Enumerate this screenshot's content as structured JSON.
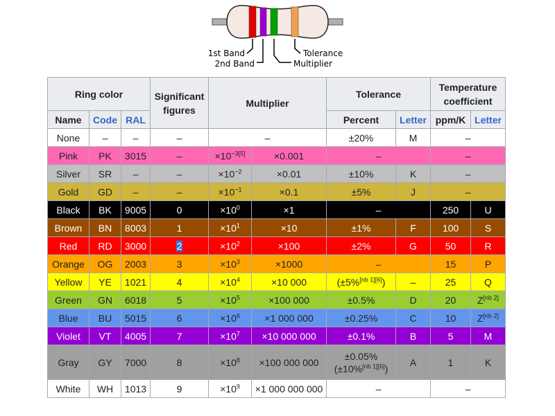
{
  "diagram": {
    "labels": {
      "band1": "1st Band",
      "band2": "2nd Band",
      "multiplier": "Multiplier",
      "tolerance": "Tolerance"
    },
    "band_colors": [
      "#e00000",
      "#9b00d3",
      "#00a000",
      "#f0a050"
    ],
    "body_color": "#f6e9e4"
  },
  "headers": {
    "ring_color": "Ring color",
    "significant_figures": "Significant figures",
    "multiplier": "Multiplier",
    "tolerance": "Tolerance",
    "temperature_coefficient": "Temperature coefficient",
    "name": "Name",
    "code": "Code",
    "ral": "RAL",
    "percent": "Percent",
    "letter": "Letter",
    "ppm_k": "ppm/K",
    "temp_letter": "Letter"
  },
  "rows": [
    {
      "name": "None",
      "code": "–",
      "ral": "–",
      "sig": "–",
      "mult_exp": "–",
      "mult_val": "–",
      "tol_pct": "±20%",
      "tol_letter": "M",
      "ppm": "–",
      "temp_letter": "",
      "bg": "#ffffff",
      "fg": "#202122"
    },
    {
      "name": "Pink",
      "code": "PK",
      "ral": "3015",
      "sig": "–",
      "mult_exp": "×10",
      "mult_sup": "−3",
      "mult_ref": "[5]",
      "mult_val": "×0.001",
      "tol_pct": "–",
      "tol_letter": "",
      "ppm": "–",
      "temp_letter": "",
      "bg": "#ff69b4",
      "fg": "#202122"
    },
    {
      "name": "Silver",
      "code": "SR",
      "ral": "–",
      "sig": "–",
      "mult_exp": "×10",
      "mult_sup": "−2",
      "mult_val": "×0.01",
      "tol_pct": "±10%",
      "tol_letter": "K",
      "ppm": "–",
      "temp_letter": "",
      "bg": "#c0c0c0",
      "fg": "#202122"
    },
    {
      "name": "Gold",
      "code": "GD",
      "ral": "–",
      "sig": "–",
      "mult_exp": "×10",
      "mult_sup": "−1",
      "mult_val": "×0.1",
      "tol_pct": "±5%",
      "tol_letter": "J",
      "ppm": "–",
      "temp_letter": "",
      "bg": "#cfb53b",
      "fg": "#202122"
    },
    {
      "name": "Black",
      "code": "BK",
      "ral": "9005",
      "sig": "0",
      "mult_exp": "×10",
      "mult_sup": "0",
      "mult_val": "×1",
      "tol_pct": "–",
      "tol_letter": "",
      "ppm": "250",
      "temp_letter": "U",
      "bg": "#000000",
      "fg": "#ffffff"
    },
    {
      "name": "Brown",
      "code": "BN",
      "ral": "8003",
      "sig": "1",
      "mult_exp": "×10",
      "mult_sup": "1",
      "mult_val": "×10",
      "tol_pct": "±1%",
      "tol_letter": "F",
      "ppm": "100",
      "temp_letter": "S",
      "bg": "#964b00",
      "fg": "#ffffff"
    },
    {
      "name": "Red",
      "code": "RD",
      "ral": "3000",
      "sig": "2",
      "mult_exp": "×10",
      "mult_sup": "2",
      "mult_val": "×100",
      "tol_pct": "±2%",
      "tol_letter": "G",
      "ppm": "50",
      "temp_letter": "R",
      "bg": "#ff0000",
      "fg": "#ffffff",
      "sig_selected": true
    },
    {
      "name": "Orange",
      "code": "OG",
      "ral": "2003",
      "sig": "3",
      "mult_exp": "×10",
      "mult_sup": "3",
      "mult_val": "×1000",
      "tol_pct": "–",
      "tol_letter": "",
      "ppm": "15",
      "temp_letter": "P",
      "bg": "#ffa500",
      "fg": "#202122"
    },
    {
      "name": "Yellow",
      "code": "YE",
      "ral": "1021",
      "sig": "4",
      "mult_exp": "×10",
      "mult_sup": "4",
      "mult_val": "×10 000",
      "tol_pct": "(±5%",
      "tol_ref": "[nb 1][6]",
      "tol_pct_end": ")",
      "tol_letter": "–",
      "ppm": "25",
      "temp_letter": "Q",
      "bg": "#ffff00",
      "fg": "#202122"
    },
    {
      "name": "Green",
      "code": "GN",
      "ral": "6018",
      "sig": "5",
      "mult_exp": "×10",
      "mult_sup": "5",
      "mult_val": "×100 000",
      "tol_pct": "±0.5%",
      "tol_letter": "D",
      "ppm": "20",
      "temp_letter": "Z",
      "temp_ref": "[nb 2]",
      "bg": "#9acd32",
      "fg": "#202122"
    },
    {
      "name": "Blue",
      "code": "BU",
      "ral": "5015",
      "sig": "6",
      "mult_exp": "×10",
      "mult_sup": "6",
      "mult_val": "×1 000 000",
      "tol_pct": "±0.25%",
      "tol_letter": "C",
      "ppm": "10",
      "temp_letter": "Z",
      "temp_ref": "[nb 2]",
      "bg": "#6495ed",
      "fg": "#202122"
    },
    {
      "name": "Violet",
      "code": "VT",
      "ral": "4005",
      "sig": "7",
      "mult_exp": "×10",
      "mult_sup": "7",
      "mult_val": "×10 000 000",
      "tol_pct": "±0.1%",
      "tol_letter": "B",
      "ppm": "5",
      "temp_letter": "M",
      "bg": "#9400d3",
      "fg": "#ffffff"
    },
    {
      "name": "Gray",
      "code": "GY",
      "ral": "7000",
      "sig": "8",
      "mult_exp": "×10",
      "mult_sup": "8",
      "mult_val": "×100 000 000",
      "tol_pct": "±0.05%",
      "tol_pct2": "(±10%",
      "tol_ref": "[nb 1][6]",
      "tol_pct_end": ")",
      "tol_letter": "A",
      "ppm": "1",
      "temp_letter": "K",
      "bg": "#a0a0a0",
      "fg": "#202122",
      "tall": true
    },
    {
      "name": "White",
      "code": "WH",
      "ral": "1013",
      "sig": "9",
      "mult_exp": "×10",
      "mult_sup": "9",
      "mult_val": "×1 000 000 000",
      "tol_pct": "–",
      "tol_letter": "",
      "ppm": "–",
      "temp_letter": "",
      "bg": "#ffffff",
      "fg": "#202122"
    }
  ]
}
